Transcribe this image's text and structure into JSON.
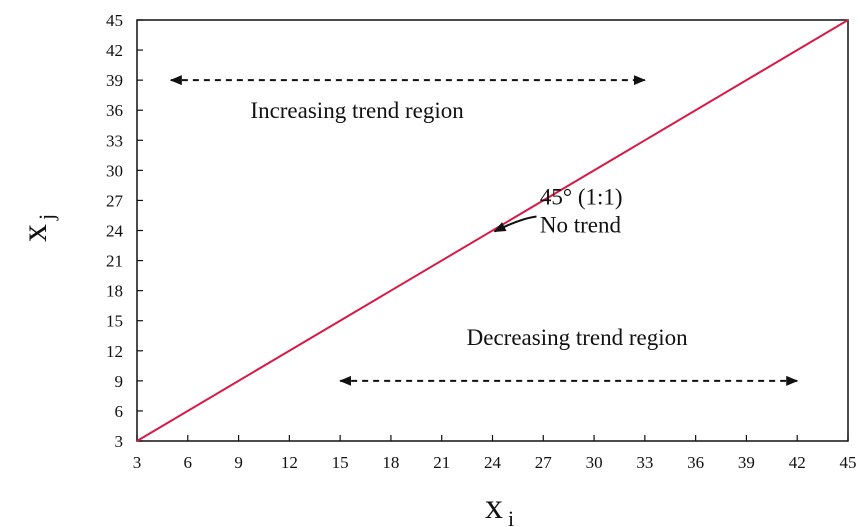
{
  "chart_data": {
    "type": "line",
    "title": "",
    "xlabel": {
      "main": "x",
      "sub": "i"
    },
    "ylabel": {
      "main": "x",
      "sub": "j"
    },
    "xlim": [
      3,
      45
    ],
    "ylim": [
      3,
      45
    ],
    "x_ticks": [
      3,
      6,
      9,
      12,
      15,
      18,
      21,
      24,
      27,
      30,
      33,
      36,
      39,
      42,
      45
    ],
    "y_ticks": [
      3,
      6,
      9,
      12,
      15,
      18,
      21,
      24,
      27,
      30,
      33,
      36,
      39,
      42,
      45
    ],
    "grid": false,
    "legend": "none",
    "series": [
      {
        "x": [
          3,
          45
        ],
        "y": [
          3,
          45
        ],
        "color": "#d81b46"
      }
    ],
    "annotations": {
      "upper_region_label": "Increasing trend region",
      "upper_arrow": {
        "x": [
          5,
          33
        ],
        "y": 39
      },
      "lower_region_label": "Decreasing trend region",
      "lower_arrow": {
        "x": [
          15,
          42
        ],
        "y": 9
      },
      "line_label_1": "45° (1:1)",
      "line_label_2": "No trend",
      "line_label_points_to": {
        "x": 24,
        "y": 24
      }
    }
  }
}
